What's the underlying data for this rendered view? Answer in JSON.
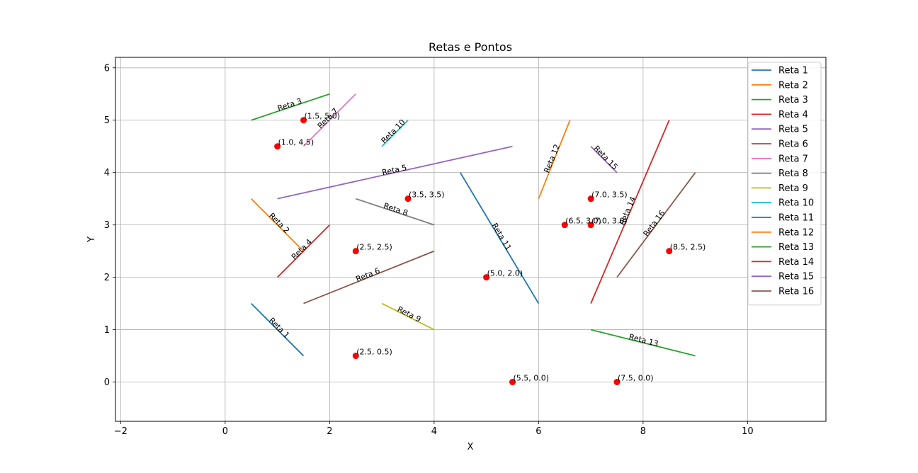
{
  "chart_data": {
    "type": "line",
    "title": "Retas e Pontos",
    "xlabel": "X",
    "ylabel": "Y",
    "xlim": [
      -2.1,
      11.5
    ],
    "ylim": [
      -0.75,
      6.2
    ],
    "xticks": [
      -2,
      0,
      2,
      4,
      6,
      8,
      10
    ],
    "yticks": [
      0,
      1,
      2,
      3,
      4,
      5,
      6
    ],
    "xtick_labels": [
      "−2",
      "0",
      "2",
      "4",
      "6",
      "8",
      "10"
    ],
    "ytick_labels": [
      "0",
      "1",
      "2",
      "3",
      "4",
      "5",
      "6"
    ],
    "grid": true,
    "legend_position": "top-right",
    "series": [
      {
        "name": "Reta 1",
        "color": "#1f77b4",
        "x": [
          0.5,
          1.5
        ],
        "y": [
          1.5,
          0.5
        ]
      },
      {
        "name": "Reta 2",
        "color": "#ff7f0e",
        "x": [
          0.5,
          1.5
        ],
        "y": [
          3.5,
          2.5
        ]
      },
      {
        "name": "Reta 3",
        "color": "#2ca02c",
        "x": [
          0.5,
          2.0
        ],
        "y": [
          5.0,
          5.5
        ]
      },
      {
        "name": "Reta 4",
        "color": "#d62728",
        "x": [
          1.0,
          2.0
        ],
        "y": [
          2.0,
          3.0
        ]
      },
      {
        "name": "Reta 5",
        "color": "#9467bd",
        "x": [
          1.0,
          5.5
        ],
        "y": [
          3.5,
          4.5
        ]
      },
      {
        "name": "Reta 6",
        "color": "#8c564b",
        "x": [
          1.5,
          4.0
        ],
        "y": [
          1.5,
          2.5
        ]
      },
      {
        "name": "Reta 7",
        "color": "#e377c2",
        "x": [
          1.5,
          2.5
        ],
        "y": [
          4.5,
          5.5
        ]
      },
      {
        "name": "Reta 8",
        "color": "#7f7f7f",
        "x": [
          2.5,
          4.0
        ],
        "y": [
          3.5,
          3.0
        ]
      },
      {
        "name": "Reta 9",
        "color": "#bcbd22",
        "x": [
          3.0,
          4.0
        ],
        "y": [
          1.5,
          1.0
        ]
      },
      {
        "name": "Reta 10",
        "color": "#17becf",
        "x": [
          3.0,
          3.5
        ],
        "y": [
          4.5,
          5.0
        ]
      },
      {
        "name": "Reta 11",
        "color": "#1f77b4",
        "x": [
          4.5,
          6.0
        ],
        "y": [
          4.0,
          1.5
        ]
      },
      {
        "name": "Reta 12",
        "color": "#ff7f0e",
        "x": [
          6.0,
          6.6
        ],
        "y": [
          3.5,
          5.0
        ]
      },
      {
        "name": "Reta 13",
        "color": "#2ca02c",
        "x": [
          7.0,
          9.0
        ],
        "y": [
          1.0,
          0.5
        ]
      },
      {
        "name": "Reta 14",
        "color": "#d62728",
        "x": [
          7.0,
          8.5
        ],
        "y": [
          1.5,
          5.0
        ]
      },
      {
        "name": "Reta 15",
        "color": "#9467bd",
        "x": [
          7.0,
          7.5
        ],
        "y": [
          4.5,
          4.0
        ]
      },
      {
        "name": "Reta 16",
        "color": "#8c564b",
        "x": [
          7.5,
          9.0
        ],
        "y": [
          2.0,
          4.0
        ]
      }
    ],
    "points": {
      "color": "#ff0000",
      "items": [
        {
          "x": 1.0,
          "y": 4.5,
          "label": "(1.0, 4.5)"
        },
        {
          "x": 1.5,
          "y": 5.0,
          "label": "(1.5, 5.0)"
        },
        {
          "x": 3.5,
          "y": 3.5,
          "label": "(3.5, 3.5)"
        },
        {
          "x": 2.5,
          "y": 2.5,
          "label": "(2.5, 2.5)"
        },
        {
          "x": 2.5,
          "y": 0.5,
          "label": "(2.5, 0.5)"
        },
        {
          "x": 5.0,
          "y": 2.0,
          "label": "(5.0, 2.0)"
        },
        {
          "x": 5.5,
          "y": 0.0,
          "label": "(5.5, 0.0)"
        },
        {
          "x": 6.5,
          "y": 3.0,
          "label": "(6.5, 3.0)"
        },
        {
          "x": 7.0,
          "y": 3.5,
          "label": "(7.0, 3.5)"
        },
        {
          "x": 7.0,
          "y": 3.0,
          "label": "(7.0, 3.0)"
        },
        {
          "x": 7.5,
          "y": 0.0,
          "label": "(7.5, 0.0)"
        },
        {
          "x": 8.5,
          "y": 2.5,
          "label": "(8.5, 2.5)"
        }
      ]
    }
  }
}
